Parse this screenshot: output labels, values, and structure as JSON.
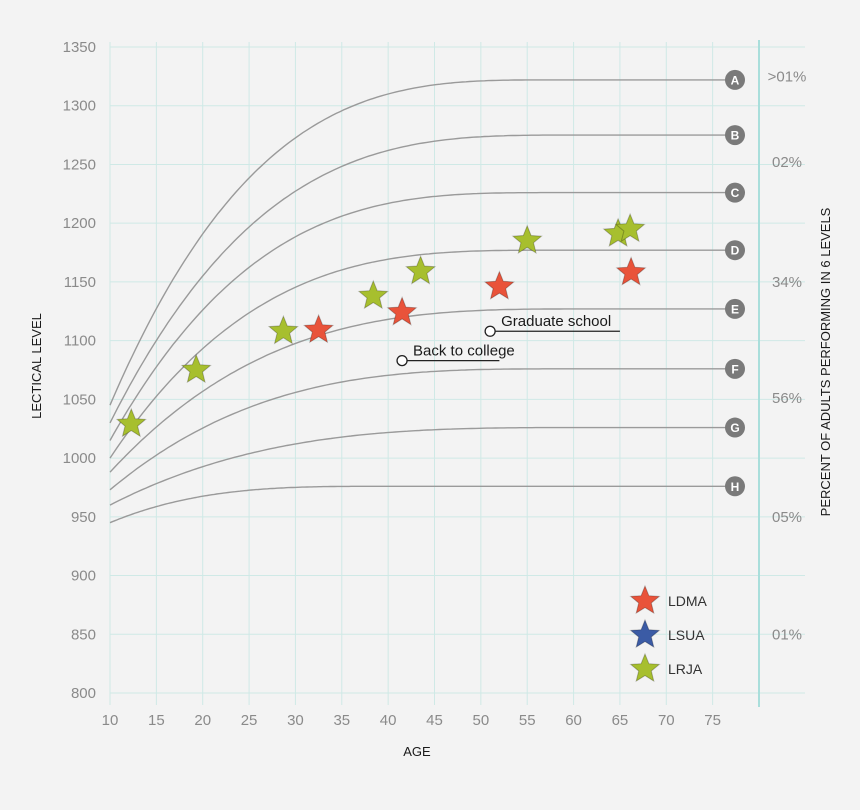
{
  "chart_data": {
    "type": "line",
    "xlabel": "AGE",
    "ylabel": "LECTICAL LEVEL",
    "y2label": "PERCENT OF ADULTS PERFORMING IN 6 LEVELS",
    "xlim": [
      10,
      80
    ],
    "ylim": [
      800,
      1350
    ],
    "x_ticks": [
      10,
      15,
      20,
      25,
      30,
      35,
      40,
      45,
      50,
      55,
      60,
      65,
      70,
      75
    ],
    "y_ticks": [
      800,
      850,
      900,
      950,
      1000,
      1050,
      1100,
      1150,
      1200,
      1250,
      1300,
      1350
    ],
    "grid": true,
    "trajectories": [
      {
        "label": "A",
        "start": 1045,
        "end": 1322,
        "plateau_age": 58
      },
      {
        "label": "B",
        "start": 1030,
        "end": 1275,
        "plateau_age": 60
      },
      {
        "label": "C",
        "start": 1015,
        "end": 1226,
        "plateau_age": 58
      },
      {
        "label": "D",
        "start": 1000,
        "end": 1177,
        "plateau_age": 58
      },
      {
        "label": "E",
        "start": 988,
        "end": 1127,
        "plateau_age": 62
      },
      {
        "label": "F",
        "start": 973,
        "end": 1076,
        "plateau_age": 60
      },
      {
        "label": "G",
        "start": 960,
        "end": 1026,
        "plateau_age": 62
      },
      {
        "label": "H",
        "start": 945,
        "end": 976,
        "plateau_age": 40
      }
    ],
    "percent_labels": [
      {
        "text": ">01%",
        "y": 1325
      },
      {
        "text": "02%",
        "y": 1252
      },
      {
        "text": "34%",
        "y": 1150
      },
      {
        "text": "56%",
        "y": 1051
      },
      {
        "text": "05%",
        "y": 950
      },
      {
        "text": "01%",
        "y": 850
      }
    ],
    "series": [
      {
        "name": "LDMA",
        "color": "#e9533a",
        "points": [
          [
            32.5,
            1109
          ],
          [
            41.5,
            1124
          ],
          [
            52,
            1146
          ],
          [
            66.2,
            1158
          ]
        ]
      },
      {
        "name": "LSUA",
        "color": "#3b5ba5",
        "points": []
      },
      {
        "name": "LRJA",
        "color": "#a7bf2e",
        "points": [
          [
            12.3,
            1029
          ],
          [
            19.3,
            1075
          ],
          [
            28.7,
            1108
          ],
          [
            38.4,
            1138
          ],
          [
            43.5,
            1159
          ],
          [
            55,
            1185
          ],
          [
            64.8,
            1191
          ],
          [
            66.1,
            1195
          ]
        ]
      }
    ],
    "annotations": [
      {
        "text": "Graduate school",
        "x": 51,
        "y": 1108,
        "line_end_x": 65
      },
      {
        "text": "Back to college",
        "x": 41.5,
        "y": 1083,
        "line_end_x": 52
      }
    ],
    "legend_position": "bottom-right"
  }
}
